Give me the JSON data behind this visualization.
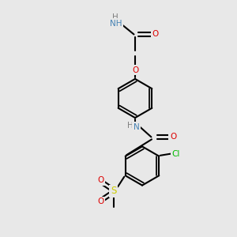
{
  "bg_color": "#e8e8e8",
  "bond_color": "#000000",
  "bond_width": 1.5,
  "atom_colors": {
    "N": "#4682b4",
    "O": "#dd0000",
    "Cl": "#00bb00",
    "S": "#cccc00",
    "C": "#000000",
    "H": "#808080"
  },
  "font_size": 7.5,
  "figsize": [
    3.0,
    3.0
  ],
  "dpi": 100
}
